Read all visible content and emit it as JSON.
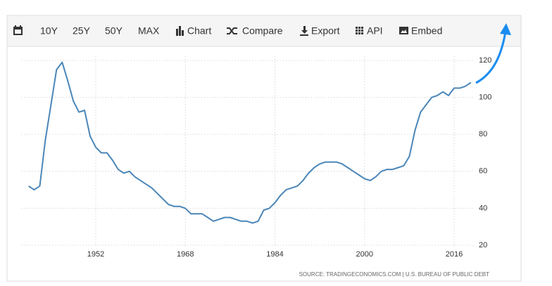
{
  "toolbar": {
    "items": [
      "10Y",
      "25Y",
      "50Y",
      "MAX",
      "Chart",
      "Compare",
      "Export",
      "API",
      "Embed"
    ]
  },
  "chart_data": {
    "type": "line",
    "x": [
      1940,
      1941,
      1942,
      1943,
      1944,
      1945,
      1946,
      1947,
      1948,
      1949,
      1950,
      1951,
      1952,
      1953,
      1954,
      1955,
      1956,
      1957,
      1958,
      1959,
      1960,
      1961,
      1962,
      1963,
      1964,
      1965,
      1966,
      1967,
      1968,
      1969,
      1970,
      1971,
      1972,
      1973,
      1974,
      1975,
      1976,
      1977,
      1978,
      1979,
      1980,
      1981,
      1982,
      1983,
      1984,
      1985,
      1986,
      1987,
      1988,
      1989,
      1990,
      1991,
      1992,
      1993,
      1994,
      1995,
      1996,
      1997,
      1998,
      1999,
      2000,
      2001,
      2002,
      2003,
      2004,
      2005,
      2006,
      2007,
      2008,
      2009,
      2010,
      2011,
      2012,
      2013,
      2014,
      2015,
      2016,
      2017,
      2018,
      2019
    ],
    "series": [
      {
        "color": "#4a86b8",
        "values": [
          52,
          50,
          52,
          77,
          96,
          115,
          119,
          109,
          98,
          92,
          93,
          79,
          73,
          70,
          70,
          66,
          61,
          59,
          60,
          57,
          55,
          53,
          51,
          48,
          45,
          42,
          41,
          41,
          40,
          37,
          37,
          37,
          35,
          33,
          34,
          35,
          35,
          34,
          33,
          33,
          32,
          33,
          39,
          40,
          43,
          47,
          50,
          51,
          52,
          55,
          59,
          62,
          64,
          65,
          65,
          65,
          64,
          62,
          60,
          58,
          56,
          55,
          57,
          60,
          61,
          61,
          62,
          63,
          68,
          82,
          92,
          96,
          100,
          101,
          103,
          101,
          105,
          105,
          106,
          108
        ]
      }
    ],
    "xlim": [
      1939,
      2020
    ],
    "xticks": [
      1952,
      1968,
      1984,
      2000,
      2016
    ],
    "ylim": [
      16,
      122
    ],
    "yticks": [
      20,
      40,
      60,
      80,
      100,
      120
    ],
    "grid": true,
    "source": "SOURCE: TRADINGECONOMICS.COM | U.S. BUREAU OF PUBLIC DEBT"
  }
}
